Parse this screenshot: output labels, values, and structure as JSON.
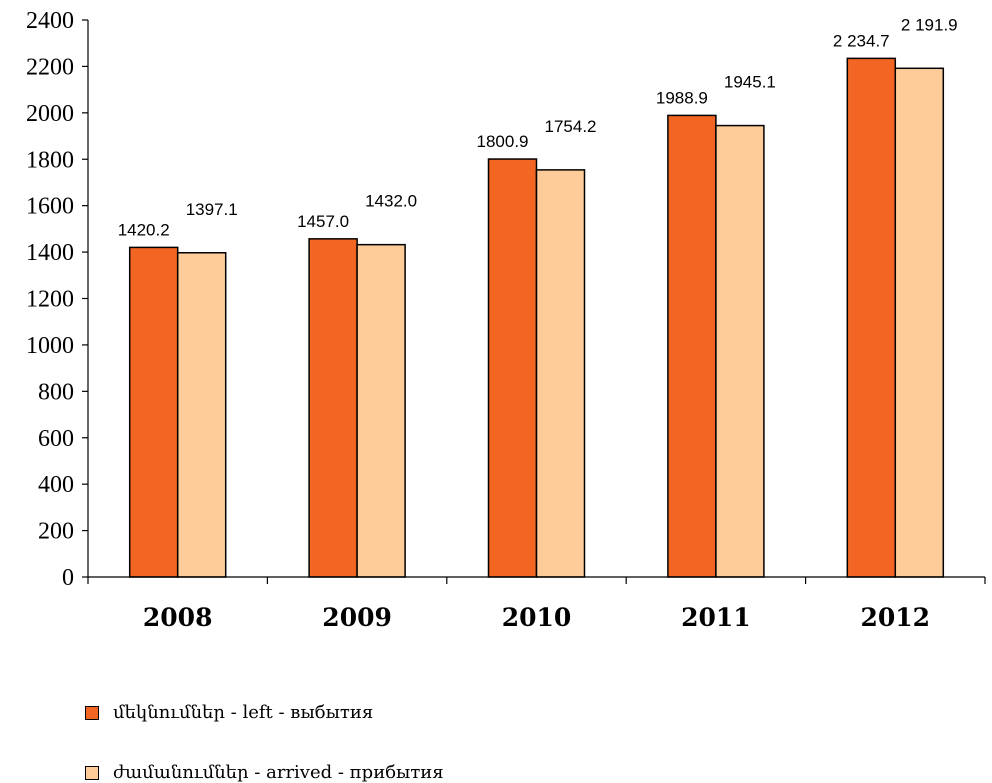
{
  "chart_data": {
    "type": "bar",
    "categories": [
      "2008",
      "2009",
      "2010",
      "2011",
      "2012"
    ],
    "series": [
      {
        "name": "մեկնումներ - left - выбытия",
        "values": [
          1420.2,
          1457.0,
          1800.9,
          1988.9,
          2234.7
        ],
        "labels": [
          "1420.2",
          "1457.0",
          "1800.9",
          "1988.9",
          "2 234.7"
        ],
        "color": "#f26522"
      },
      {
        "name": "ժամանումներ - arrived - прибытия",
        "values": [
          1397.1,
          1432.0,
          1754.2,
          1945.1,
          2191.9
        ],
        "labels": [
          "1397.1",
          "1432.0",
          "1754.2",
          "1945.1",
          "2 191.9"
        ],
        "color": "#fdcc99"
      }
    ],
    "ylim": [
      0,
      2400
    ],
    "yticks": [
      "0",
      "200",
      "400",
      "600",
      "800",
      "1000",
      "1200",
      "1400",
      "1600",
      "1800",
      "2000",
      "2200",
      "2400"
    ],
    "grid": false,
    "legend_position": "bottom-left"
  }
}
